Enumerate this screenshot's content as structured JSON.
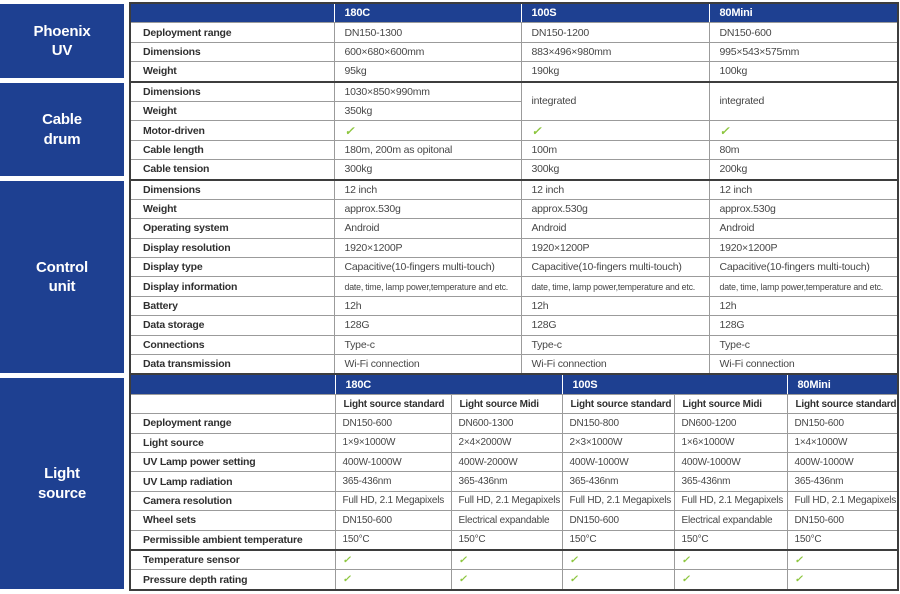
{
  "colors": {
    "header_blue": "#1e4091",
    "check_green": "#8dc63f",
    "cell_border": "#9b9b9b",
    "section_border": "#3d3d3d"
  },
  "check_symbol": "✓",
  "sidebar": {
    "sections": [
      {
        "label": "Phoenix UV",
        "lines": [
          "Phoenix",
          "UV"
        ]
      },
      {
        "label": "Cable drum",
        "lines": [
          "Cable",
          "drum"
        ]
      },
      {
        "label": "Control unit",
        "lines": [
          "Control",
          "unit"
        ]
      },
      {
        "label": "Light source",
        "lines": [
          "Light",
          "source"
        ]
      }
    ]
  },
  "sections": [
    {
      "name": "phoenix-uv",
      "header": [
        "180C",
        "100S",
        "80Mini"
      ],
      "rows": [
        {
          "label": "Deployment range",
          "values": [
            "DN150-1300",
            "DN150-1200",
            "DN150-600"
          ]
        },
        {
          "label": "Dimensions",
          "values": [
            "600×680×600mm",
            "883×496×980mm",
            "995×543×575mm"
          ]
        },
        {
          "label": "Weight",
          "values": [
            "95kg",
            "190kg",
            "100kg"
          ]
        }
      ]
    },
    {
      "name": "cable-drum",
      "rows": [
        {
          "label": "Dimensions",
          "values": [
            "1030×850×990mm",
            {
              "text": "integrated",
              "rowspan": 2
            },
            {
              "text": "integrated",
              "rowspan": 2
            }
          ]
        },
        {
          "label": "Weight",
          "values": [
            "350kg"
          ]
        },
        {
          "label": "Motor-driven",
          "values": [
            "✓",
            "✓",
            "✓"
          ]
        },
        {
          "label": "Cable length",
          "values": [
            "180m, 200m as opitonal",
            "100m",
            "80m"
          ]
        },
        {
          "label": "Cable tension",
          "values": [
            "300kg",
            "300kg",
            "200kg"
          ]
        }
      ]
    },
    {
      "name": "control-unit",
      "rows": [
        {
          "label": "Dimensions",
          "values": [
            "12 inch",
            "12 inch",
            "12 inch"
          ]
        },
        {
          "label": "Weight",
          "values": [
            "approx.530g",
            "approx.530g",
            "approx.530g"
          ]
        },
        {
          "label": "Operating system",
          "values": [
            "Android",
            "Android",
            "Android"
          ]
        },
        {
          "label": "Display resolution",
          "values": [
            "1920×1200P",
            "1920×1200P",
            "1920×1200P"
          ]
        },
        {
          "label": "Display type",
          "values": [
            "Capacitive(10-fingers multi-touch)",
            "Capacitive(10-fingers multi-touch)",
            "Capacitive(10-fingers multi-touch)"
          ]
        },
        {
          "label": "Display information",
          "small": true,
          "values": [
            "date, time, lamp power,temperature and etc.",
            "date, time, lamp power,temperature and etc.",
            "date, time, lamp power,temperature and etc."
          ]
        },
        {
          "label": "Battery",
          "values": [
            "12h",
            "12h",
            "12h"
          ]
        },
        {
          "label": "Data storage",
          "values": [
            "128G",
            "128G",
            "128G"
          ]
        },
        {
          "label": "Connections",
          "values": [
            "Type-c",
            "Type-c",
            "Type-c"
          ]
        },
        {
          "label": "Data transmission",
          "values": [
            "Wi-Fi connection",
            "Wi-Fi connection",
            "Wi-Fi connection"
          ]
        }
      ]
    },
    {
      "name": "light-source",
      "header_groups": [
        {
          "label": "180C",
          "span": 2
        },
        {
          "label": "100S",
          "span": 2
        },
        {
          "label": "80Mini",
          "span": 1
        }
      ],
      "subheaders": [
        "Light source standard",
        "Light source Midi",
        "Light source standard",
        "Light source Midi",
        "Light source standard"
      ],
      "rows": [
        {
          "label": "Deployment range",
          "values": [
            "DN150-600",
            "DN600-1300",
            "DN150-800",
            "DN600-1200",
            "DN150-600"
          ]
        },
        {
          "label": "Light source",
          "values": [
            "1×9×1000W",
            "2×4×2000W",
            "2×3×1000W",
            "1×6×1000W",
            "1×4×1000W"
          ]
        },
        {
          "label": "UV Lamp power setting",
          "values": [
            "400W-1000W",
            "400W-2000W",
            "400W-1000W",
            "400W-1000W",
            "400W-1000W"
          ]
        },
        {
          "label": "UV Lamp radiation",
          "values": [
            "365-436nm",
            "365-436nm",
            "365-436nm",
            "365-436nm",
            "365-436nm"
          ]
        },
        {
          "label": "Camera resolution",
          "values": [
            "Full HD, 2.1 Megapixels",
            "Full HD, 2.1 Megapixels",
            "Full HD, 2.1 Megapixels",
            "Full HD, 2.1 Megapixels",
            "Full HD, 2.1 Megapixels"
          ]
        },
        {
          "label": "Wheel sets",
          "values": [
            "DN150-600",
            "Electrical expandable",
            "DN150-600",
            "Electrical expandable",
            "DN150-600"
          ]
        },
        {
          "label": "Permissible ambient temperature",
          "values": [
            "150°C",
            "150°C",
            "150°C",
            "150°C",
            "150°C"
          ]
        },
        {
          "label": "Temperature sensor",
          "thick_top": true,
          "values": [
            "✓",
            "✓",
            "✓",
            "✓",
            "✓"
          ]
        },
        {
          "label": "Pressure depth rating",
          "values": [
            "✓",
            "✓",
            "✓",
            "✓",
            "✓"
          ]
        }
      ]
    }
  ]
}
